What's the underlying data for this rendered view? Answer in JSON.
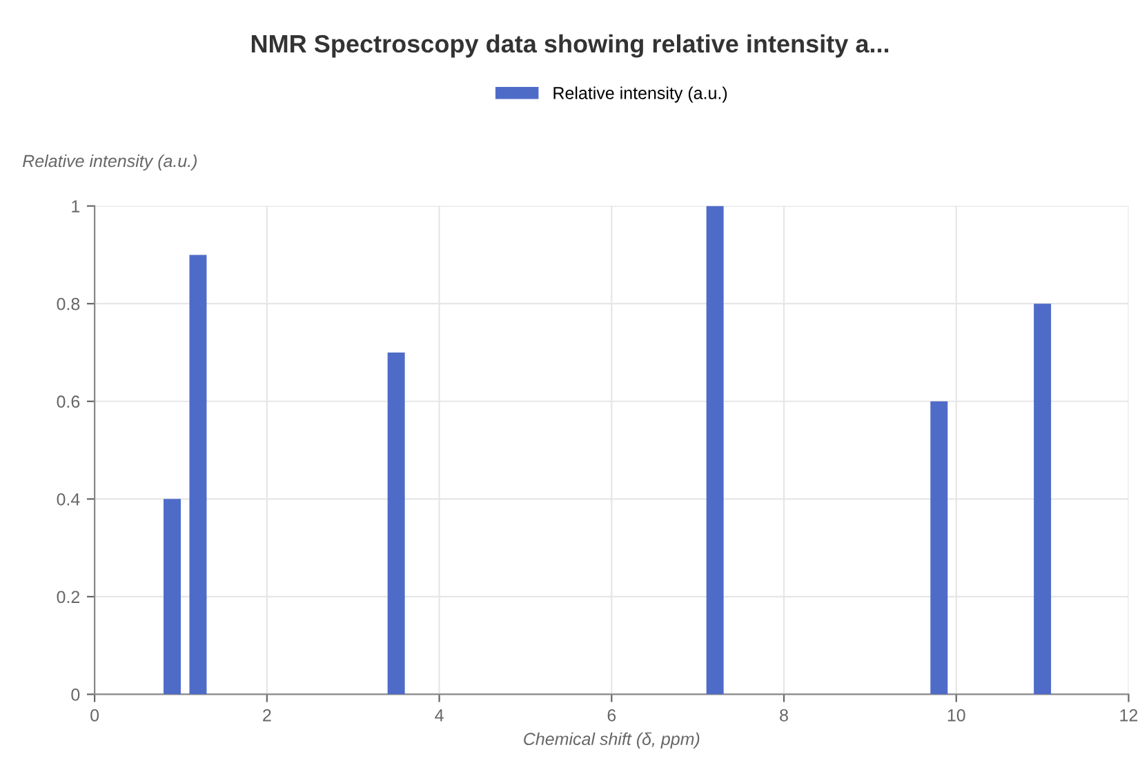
{
  "chart_data": {
    "type": "bar",
    "title": "NMR Spectroscopy data showing relative intensity a...",
    "xlabel": "Chemical shift (δ, ppm)",
    "ylabel": "Relative intensity (a.u.)",
    "x": [
      0.9,
      1.2,
      3.5,
      7.2,
      9.8,
      11.0
    ],
    "series": [
      {
        "name": "Relative intensity (a.u.)",
        "color": "#4e6bc8",
        "values": [
          0.4,
          0.9,
          0.7,
          1,
          0.6,
          0.8
        ]
      }
    ],
    "xlim": [
      0,
      12
    ],
    "xticks": [
      0,
      2,
      4,
      6,
      8,
      10,
      12
    ],
    "ylim": [
      0,
      1
    ],
    "yticks": [
      0,
      0.2,
      0.4,
      0.6,
      0.8,
      1
    ],
    "grid": true,
    "legend": "top"
  }
}
